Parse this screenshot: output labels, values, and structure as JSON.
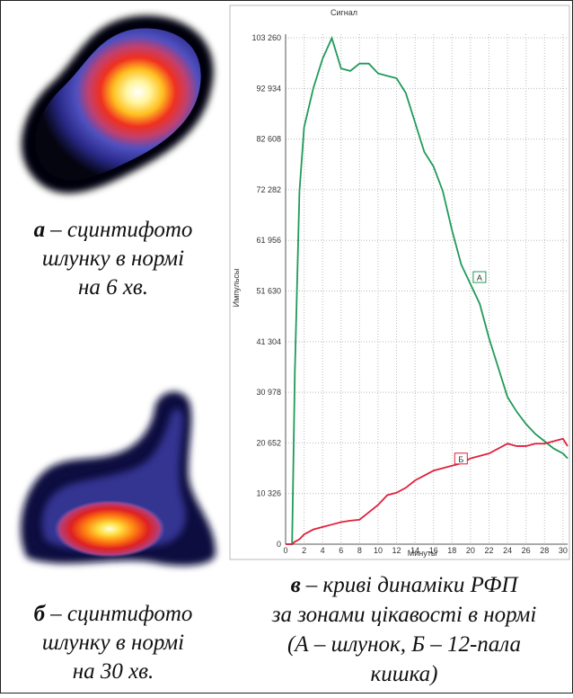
{
  "chart_data": {
    "type": "line",
    "title": "Сигнал",
    "x_label": "Минуты",
    "y_label": "Импульсы",
    "x": [
      0,
      0.7,
      1,
      1.5,
      2,
      3,
      4,
      5,
      6,
      7,
      8,
      9,
      10,
      11,
      12,
      13,
      14,
      15,
      16,
      17,
      18,
      19,
      20,
      21,
      22,
      23,
      24,
      25,
      26,
      27,
      28,
      29,
      30,
      30.5
    ],
    "series": [
      {
        "name": "А",
        "color": "#1f9a5a",
        "values": [
          0,
          0,
          35000,
          72000,
          85000,
          93000,
          99000,
          103200,
          97000,
          96500,
          98000,
          98000,
          96000,
          95500,
          95000,
          92000,
          86000,
          80000,
          77000,
          72000,
          64000,
          57000,
          53000,
          49000,
          42000,
          36000,
          30000,
          27000,
          24500,
          22500,
          21000,
          19500,
          18500,
          17500
        ]
      },
      {
        "name": "Б",
        "color": "#e0203c",
        "values": [
          0,
          0,
          500,
          1000,
          2000,
          3000,
          3500,
          4000,
          4500,
          4800,
          5000,
          6500,
          8000,
          10000,
          10500,
          11500,
          13000,
          14000,
          15000,
          15500,
          16000,
          16500,
          17500,
          18000,
          18500,
          19500,
          20500,
          20000,
          20000,
          20500,
          20500,
          21000,
          21500,
          20000
        ]
      }
    ],
    "xlim": [
      0,
      30.5
    ],
    "ylim": [
      0,
      104000
    ],
    "xticks": [
      0,
      2,
      4,
      6,
      8,
      10,
      12,
      14,
      16,
      18,
      20,
      22,
      24,
      26,
      28,
      30
    ],
    "yticks": [
      0,
      {
        "value": 10326,
        "label": "10 326"
      },
      {
        "value": 20652,
        "label": "20 652"
      },
      {
        "value": 30978,
        "label": "30 978"
      },
      {
        "value": 41304,
        "label": "41 304"
      },
      {
        "value": 51630,
        "label": "51 630"
      },
      {
        "value": 61956,
        "label": "61 956"
      },
      {
        "value": 72282,
        "label": "72 282"
      },
      {
        "value": 82608,
        "label": "82 608"
      },
      {
        "value": 92934,
        "label": "92 934"
      },
      {
        "value": 103260,
        "label": "103 260"
      }
    ],
    "grid": true
  },
  "captions": [
    {
      "label": "а",
      "lines": [
        "– сцинтифото",
        "шлунку в нормі",
        "на 6 хв."
      ]
    },
    {
      "label": "б",
      "lines": [
        "– сцинтифото",
        "шлунку в нормі",
        "на 30 хв."
      ]
    },
    {
      "label": "в",
      "lines": [
        "– криві динаміки РФП",
        "за зонами цікавості в нормі",
        "(А – шлунок, Б – 12-пала",
        "кишка)"
      ]
    }
  ]
}
